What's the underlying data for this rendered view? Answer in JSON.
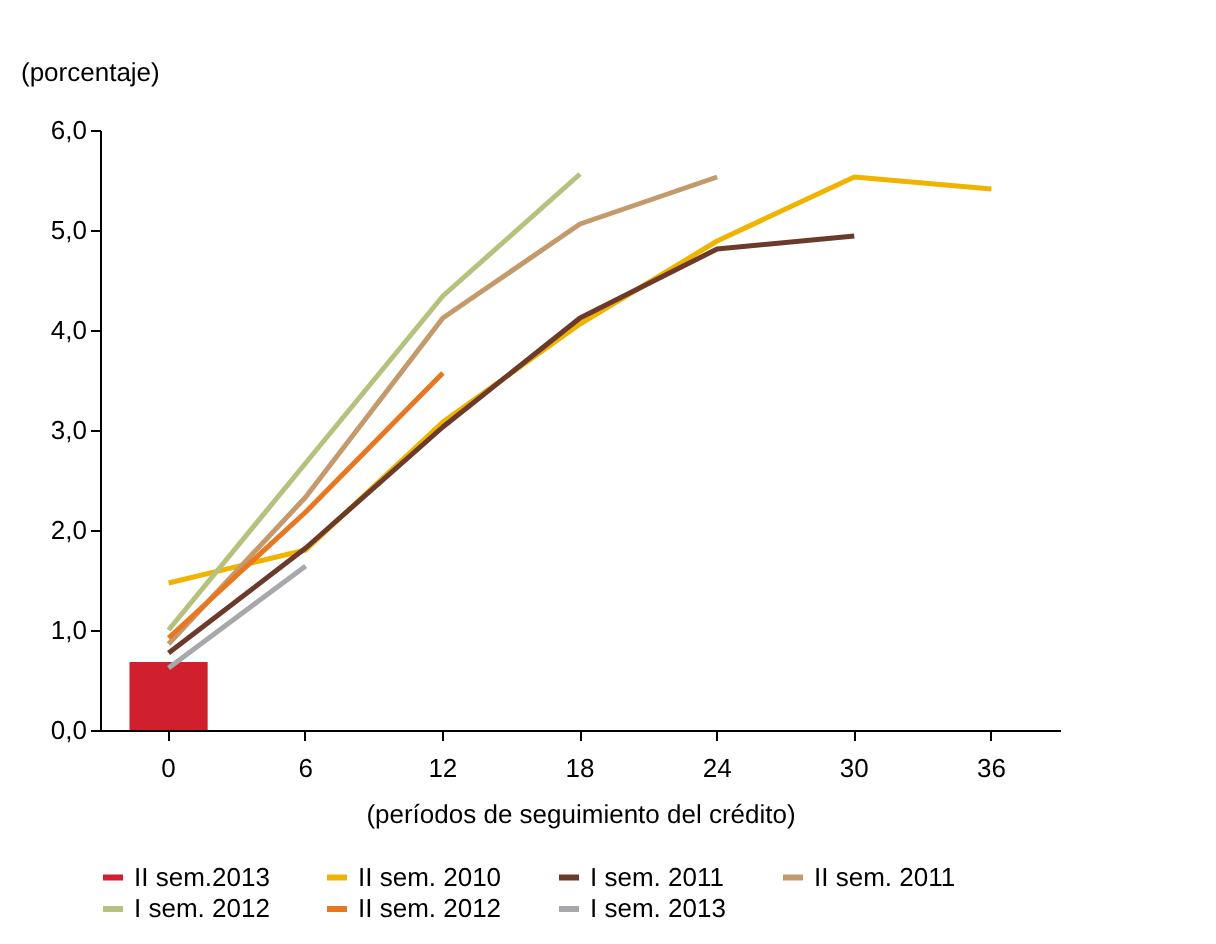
{
  "chart_data": {
    "type": "line",
    "ylabel": "(porcentaje)",
    "xlabel": "(períodos de seguimiento del crédito)",
    "categories": [
      "0",
      "6",
      "12",
      "18",
      "24",
      "30",
      "36"
    ],
    "ylim": [
      0,
      6
    ],
    "yticks": [
      {
        "value": 0,
        "label": "0,0"
      },
      {
        "value": 1,
        "label": "1,0"
      },
      {
        "value": 2,
        "label": "2,0"
      },
      {
        "value": 3,
        "label": "3,0"
      },
      {
        "value": 4,
        "label": "4,0"
      },
      {
        "value": 5,
        "label": "5,0"
      },
      {
        "value": 6,
        "label": "6,0"
      }
    ],
    "grid": false,
    "legend": "bottom",
    "series": [
      {
        "name": "II sem.2013",
        "type": "bar",
        "color": "#d0202e",
        "values": [
          0.68,
          null,
          null,
          null,
          null,
          null,
          null
        ]
      },
      {
        "name": "II sem. 2010",
        "color": "#f0b400",
        "values": [
          1.47,
          1.8,
          3.08,
          4.06,
          4.89,
          5.53,
          5.41
        ]
      },
      {
        "name": "I sem. 2011",
        "color": "#6b3a2a",
        "values": [
          0.77,
          1.82,
          3.03,
          4.12,
          4.81,
          4.94,
          null
        ]
      },
      {
        "name": "II sem. 2011",
        "color": "#c49a6c",
        "values": [
          0.86,
          2.33,
          4.12,
          5.06,
          5.53,
          null,
          null
        ]
      },
      {
        "name": "I sem. 2012",
        "color": "#b5c27e",
        "values": [
          1.0,
          2.67,
          4.34,
          5.56,
          null,
          null,
          null
        ]
      },
      {
        "name": "II sem. 2012",
        "color": "#e87722",
        "values": [
          0.92,
          2.18,
          3.57,
          null,
          null,
          null,
          null
        ]
      },
      {
        "name": "I sem. 2013",
        "color": "#a6a8ab",
        "values": [
          0.62,
          1.64,
          null,
          null,
          null,
          null,
          null
        ]
      }
    ]
  }
}
